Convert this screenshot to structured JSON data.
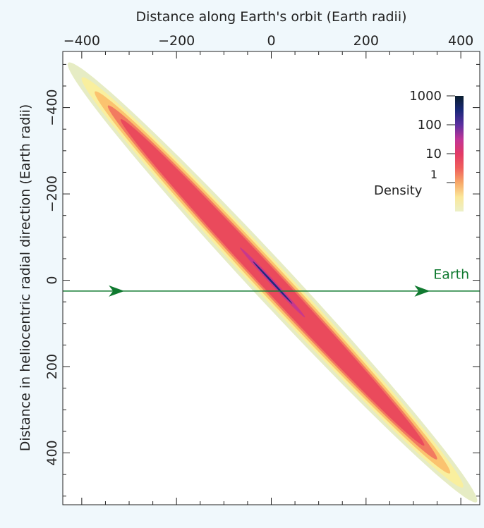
{
  "chart_data": {
    "type": "heatmap",
    "title": "",
    "xlabel": "Distance along Earth's orbit (Earth radii)",
    "ylabel": "Distance in heliocentric radial direction (Earth radii)",
    "x_axis_position": "top",
    "xlim": [
      -440,
      440
    ],
    "ylim": [
      -530,
      520
    ],
    "y_inverted": true,
    "x_ticks": [
      -400,
      -200,
      0,
      200,
      400
    ],
    "x_tick_labels": [
      "−400",
      "−200",
      "0",
      "200",
      "400"
    ],
    "y_ticks": [
      -400,
      -200,
      0,
      200,
      400
    ],
    "y_tick_labels": [
      "−400",
      "−200",
      "0",
      "200",
      "400"
    ],
    "grid": false,
    "background_color": "#ffffff",
    "density_distribution": {
      "shape": "elongated diagonal band",
      "major_axis_endpoints": [
        [
          -400,
          -470
        ],
        [
          405,
          480
        ]
      ],
      "bands": [
        {
          "density_min": 0.1,
          "color": "#e6ecc4",
          "half_width": 42
        },
        {
          "density_min": 0.5,
          "color": "#f9ef9e",
          "half_width": 35
        },
        {
          "density_min": 1,
          "color": "#fbc36f",
          "half_width": 30
        },
        {
          "density_min": 3,
          "color": "#f27a60",
          "half_width": 25
        },
        {
          "density_min": 10,
          "color": "#ea4a5c",
          "half_width": 21
        },
        {
          "density_min": 30,
          "color": "#c8388c",
          "half_width": 5
        },
        {
          "density_min": 300,
          "color": "#1c2a80",
          "half_width": 2
        }
      ],
      "core_points": [
        [
          -60,
          -70
        ],
        [
          60,
          70
        ]
      ]
    },
    "colorbar": {
      "label": "Density",
      "scale": "log",
      "range": [
        0.1,
        1000
      ],
      "tick_values": [
        1,
        10,
        100,
        1000
      ],
      "tick_labels": [
        "1",
        "10",
        "100",
        "1000"
      ],
      "colors": [
        "#ecf0c8",
        "#fbe79a",
        "#f7a868",
        "#ef5f5c",
        "#e23a66",
        "#c03597",
        "#5b2fa0",
        "#1a2878",
        "#0a1e2e"
      ],
      "placement": "top-right inside plot"
    },
    "annotations": [
      {
        "text": "Earth",
        "type": "trajectory",
        "color": "#107a30",
        "y": 25,
        "x_range": [
          -440,
          440
        ],
        "arrow_x": [
          -325,
          320
        ],
        "label_x": [
          380
        ],
        "label_y": [
          0
        ]
      }
    ]
  }
}
